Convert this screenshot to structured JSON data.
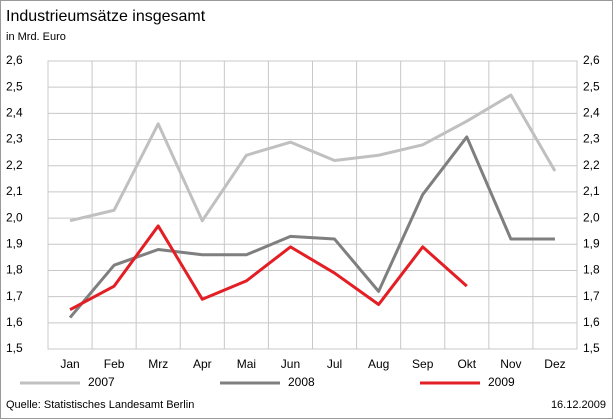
{
  "chart_data": {
    "type": "line",
    "title": "Industrieumsätze insgesamt",
    "subtitle": "in Mrd. Euro",
    "categories": [
      "Jan",
      "Feb",
      "Mrz",
      "Apr",
      "Mai",
      "Jun",
      "Jul",
      "Aug",
      "Sep",
      "Okt",
      "Nov",
      "Dez"
    ],
    "series": [
      {
        "name": "2007",
        "color": "#c0c0c0",
        "values": [
          1.99,
          2.03,
          2.36,
          1.99,
          2.24,
          2.29,
          2.22,
          2.24,
          2.28,
          2.37,
          2.47,
          2.18
        ]
      },
      {
        "name": "2008",
        "color": "#7f7f7f",
        "values": [
          1.62,
          1.82,
          1.88,
          1.86,
          1.86,
          1.93,
          1.92,
          1.72,
          2.09,
          2.31,
          1.92,
          1.92
        ]
      },
      {
        "name": "2009",
        "color": "#e31e24",
        "values": [
          1.65,
          1.74,
          1.97,
          1.69,
          1.76,
          1.89,
          1.79,
          1.67,
          1.89,
          1.74,
          null,
          null
        ]
      }
    ],
    "ylim": [
      1.5,
      2.6
    ],
    "yticks": [
      {
        "value": 1.5,
        "label": "1,5"
      },
      {
        "value": 1.6,
        "label": "1,6"
      },
      {
        "value": 1.7,
        "label": "1,7"
      },
      {
        "value": 1.8,
        "label": "1,8"
      },
      {
        "value": 1.9,
        "label": "1,9"
      },
      {
        "value": 2.0,
        "label": "2,0"
      },
      {
        "value": 2.1,
        "label": "2,1"
      },
      {
        "value": 2.2,
        "label": "2,2"
      },
      {
        "value": 2.3,
        "label": "2,3"
      },
      {
        "value": 2.4,
        "label": "2,4"
      },
      {
        "value": 2.5,
        "label": "2,5"
      },
      {
        "value": 2.6,
        "label": "2,6"
      }
    ],
    "grid": true,
    "source": "Quelle: Statistisches Landesamt Berlin",
    "date": "16.12.2009"
  }
}
